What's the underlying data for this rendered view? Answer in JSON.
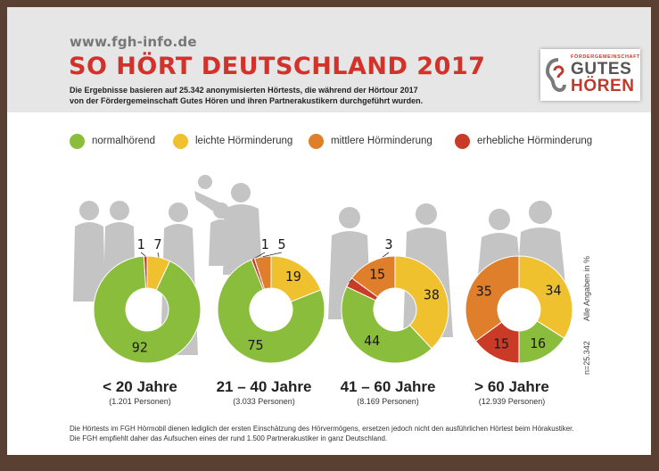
{
  "header": {
    "url": "www.fgh-info.de",
    "title": "SO HÖRT DEUTSCHLAND 2017",
    "subtitle_line1": "Die Ergebnisse basieren auf 25.342 anonymisierten Hörtests, die während der Hörtour 2017",
    "subtitle_line2": "von der Fördergemeinschaft Gutes Hören und ihren Partnerakustikern durchgeführt wurden."
  },
  "logo": {
    "top": "FÖRDERGEMEINSCHAFT",
    "line1": "GUTES",
    "line2": "HÖREN"
  },
  "colors": {
    "normal": "#8bbd3c",
    "leicht": "#f0c12e",
    "mittel": "#df7f2b",
    "erheblich": "#c93a27",
    "silhouette": "#c4c4c4",
    "title": "#d2322a"
  },
  "legend": [
    "normalhörend",
    "leichte Hörminderung",
    "mittlere Hörminderung",
    "erhebliche Hörminderung"
  ],
  "chart_data": [
    {
      "type": "pie",
      "title": "< 20 Jahre",
      "subtitle": "(1.201 Personen)",
      "categories": [
        "normalhörend",
        "leichte Hörminderung",
        "mittlere Hörminderung",
        "erhebliche Hörminderung"
      ],
      "values": [
        92,
        7,
        0,
        1
      ]
    },
    {
      "type": "pie",
      "title": "21 – 40 Jahre",
      "subtitle": "(3.033 Personen)",
      "categories": [
        "normalhörend",
        "leichte Hörminderung",
        "mittlere Hörminderung",
        "erhebliche Hörminderung"
      ],
      "values": [
        75,
        19,
        5,
        1
      ]
    },
    {
      "type": "pie",
      "title": "41 – 60 Jahre",
      "subtitle": "(8.169 Personen)",
      "categories": [
        "normalhörend",
        "leichte Hörminderung",
        "mittlere Hörminderung",
        "erhebliche Hörminderung"
      ],
      "values": [
        44,
        38,
        15,
        3
      ]
    },
    {
      "type": "pie",
      "title": "> 60 Jahre",
      "subtitle": "(12.939 Personen)",
      "categories": [
        "normalhörend",
        "leichte Hörminderung",
        "mittlere Hörminderung",
        "erhebliche Hörminderung"
      ],
      "values": [
        16,
        34,
        35,
        15
      ]
    }
  ],
  "side_notes": {
    "percent": "Alle Angaben in %",
    "n": "n=25.342"
  },
  "footer": {
    "line1": "Die Hörtests im FGH Hörmobil dienen lediglich der ersten Einschätzung des Hörvermögens, ersetzen jedoch nicht den ausführlichen Hörtest beim Hörakustiker.",
    "line2": "Die FGH empfiehlt daher das Aufsuchen eines der rund 1.500 Partnerakustiker in ganz Deutschland."
  }
}
